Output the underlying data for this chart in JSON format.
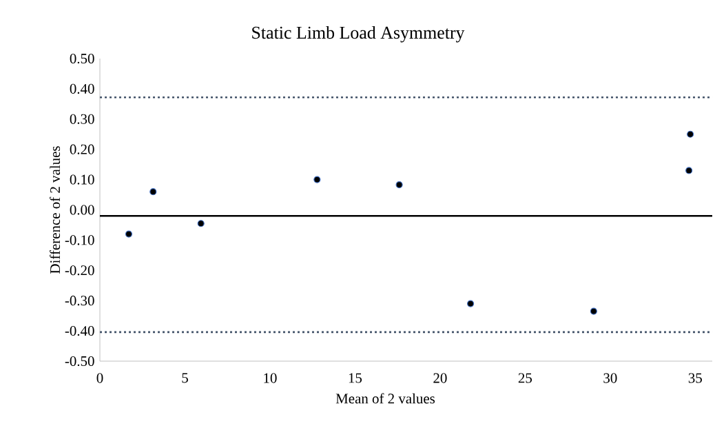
{
  "chart_data": {
    "type": "scatter",
    "title": "Static Limb Load Asymmetry",
    "xlabel": "Mean of 2 values",
    "ylabel": "Difference of 2 values",
    "xlim": [
      0,
      36
    ],
    "xticks": [
      0,
      5,
      10,
      15,
      20,
      25,
      30,
      35
    ],
    "ylim": [
      -0.5,
      0.5
    ],
    "yticks": [
      {
        "value": -0.5,
        "label": "-0.50"
      },
      {
        "value": -0.4,
        "label": "-0.40"
      },
      {
        "value": -0.3,
        "label": "-0.30"
      },
      {
        "value": -0.2,
        "label": "-0.20"
      },
      {
        "value": -0.1,
        "label": "-0.10"
      },
      {
        "value": 0,
        "label": "0.00"
      },
      {
        "value": 0.1,
        "label": "0.10"
      },
      {
        "value": 0.2,
        "label": "0.20"
      },
      {
        "value": 0.3,
        "label": "0.30"
      },
      {
        "value": 0.4,
        "label": "0.40"
      },
      {
        "value": 0.5,
        "label": "0.50"
      }
    ],
    "series": [
      {
        "color": "#000000",
        "x": [
          1.7,
          3.13,
          5.94,
          12.77,
          17.6,
          21.79,
          29.03,
          34.71,
          34.63
        ],
        "values": [
          -0.08,
          0.06,
          -0.045,
          0.1,
          0.083,
          -0.31,
          -0.335,
          0.25,
          0.13
        ]
      }
    ],
    "marker": "circle",
    "grid": false,
    "ref_lines": [
      {
        "axis": "y",
        "value": 0.372,
        "color": "#44546a",
        "line_style": "dotted"
      },
      {
        "axis": "y",
        "value": -0.02,
        "color": "#000000",
        "line_style": "solid"
      },
      {
        "axis": "y",
        "value": -0.404,
        "color": "#44546a",
        "line_style": "dotted"
      }
    ]
  }
}
